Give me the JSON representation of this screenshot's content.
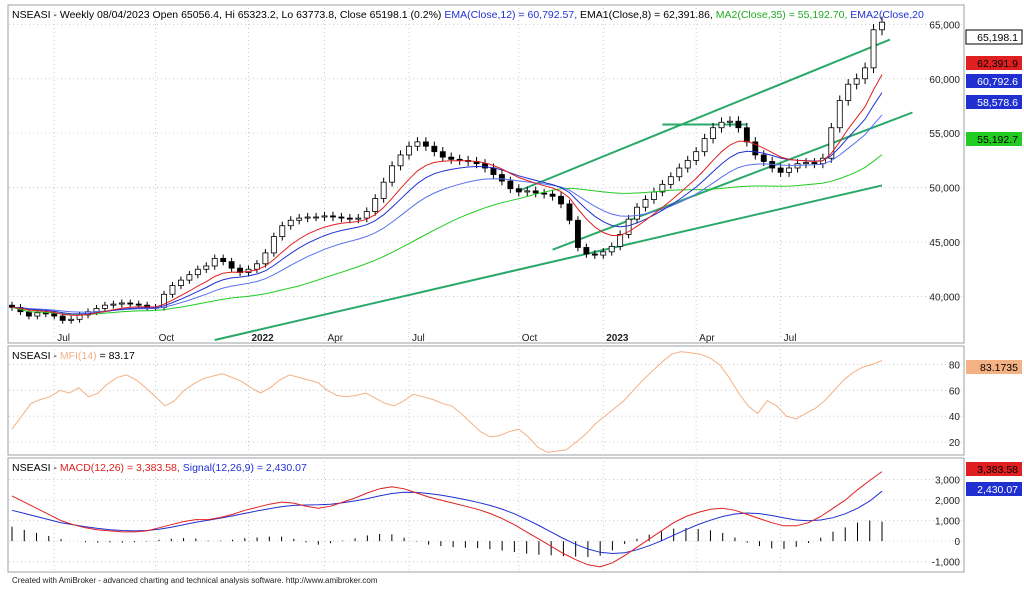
{
  "footer": "Created with AmiBroker - advanced charting and technical analysis software. http://www.amibroker.com",
  "chart_data": [
    {
      "type": "candlestick",
      "header": {
        "symbol": "NSEASI",
        "info": " - Weekly 08/04/2023 Open 65056.4, Hi 65323.2, Lo 63773.8, Close 65198.1 (0.2%) ",
        "ema12": "EMA(Close,12) = 60,792.57,",
        "ema8": " EMA1(Close,8) = 62,391.86,",
        "ma35": " MA2(Close,35) = 55,192.70,",
        "ema20": " EMA2(Close,20"
      },
      "y_ticks": [
        "40,000",
        "45,000",
        "50,000",
        "55,000",
        "60,000",
        "65,000"
      ],
      "ylim": [
        36000,
        66500
      ],
      "x_ticks": [
        "Jul",
        "Oct",
        "2022",
        "Apr",
        "Jul",
        "Oct",
        "2023",
        "Apr",
        "Jul"
      ],
      "value_tags": {
        "close": "65,198.1",
        "ema8": "62,391.9",
        "ema12": "60,792.6",
        "ema20": "58,578.6",
        "ma35": "55,192.7"
      },
      "colors": {
        "ema8": "#e02020",
        "ema12": "#2030d0",
        "ema20": "#5a6ff0",
        "ma35": "#22cc22",
        "trend": "#2aa86a",
        "candle_up": "#ffffff",
        "candle_down": "#000000"
      },
      "closes": [
        39000,
        38600,
        38200,
        38500,
        38400,
        38200,
        37800,
        37900,
        38300,
        38600,
        38900,
        39200,
        39300,
        39400,
        39300,
        39200,
        39000,
        39000,
        40200,
        41000,
        41500,
        42000,
        42500,
        42800,
        43500,
        43200,
        42600,
        42200,
        42500,
        43000,
        44000,
        45500,
        46500,
        47000,
        47200,
        47300,
        47300,
        47400,
        47300,
        47200,
        47100,
        47200,
        47800,
        49000,
        50500,
        52000,
        53000,
        53800,
        54200,
        53800,
        53300,
        52800,
        52600,
        52500,
        52400,
        52200,
        51800,
        51200,
        50600,
        49900,
        49600,
        49700,
        49500,
        49400,
        49200,
        48500,
        47000,
        44500,
        43900,
        43800,
        44100,
        44600,
        45700,
        47100,
        48200,
        48900,
        49600,
        50300,
        51000,
        51800,
        52500,
        53300,
        54500,
        55500,
        56000,
        56100,
        55500,
        54200,
        53000,
        52400,
        51800,
        51400,
        51800,
        52200,
        52300,
        52200,
        52700,
        55500,
        58000,
        59500,
        60000,
        61000,
        64500,
        65198
      ],
      "ema8_end": 62391.86,
      "ema12_end": 60792.57,
      "ema20_end": 58578.6,
      "ma35_end": 55192.7
    },
    {
      "type": "line",
      "header": {
        "symbol": "NSEASI",
        "sep": " - ",
        "indicator": "MFI(14)",
        "value": " = 83.17"
      },
      "y_ticks": [
        "20",
        "40",
        "60",
        "80"
      ],
      "ylim": [
        10,
        92
      ],
      "value_tag": "83.1735",
      "colors": {
        "mfi": "#f4b183"
      },
      "mfi": [
        30,
        40,
        50,
        53,
        55,
        60,
        58,
        62,
        55,
        58,
        65,
        70,
        72,
        68,
        62,
        55,
        48,
        52,
        60,
        65,
        69,
        71,
        73,
        70,
        67,
        62,
        58,
        62,
        68,
        72,
        70,
        68,
        66,
        60,
        56,
        55,
        56,
        58,
        54,
        50,
        48,
        52,
        57,
        55,
        53,
        50,
        48,
        42,
        35,
        28,
        24,
        25,
        28,
        30,
        24,
        16,
        12,
        13,
        14,
        20,
        26,
        34,
        40,
        46,
        52,
        60,
        68,
        75,
        82,
        88,
        90,
        89,
        88,
        85,
        80,
        70,
        58,
        48,
        42,
        52,
        48,
        40,
        38,
        42,
        46,
        52,
        60,
        68,
        74,
        78,
        80,
        83
      ]
    },
    {
      "type": "line",
      "header": {
        "symbol": "NSEASI",
        "sep": " - ",
        "macd": "MACD(12,26) = 3,383.58,",
        "signal": " Signal(12,26,9) = 2,430.07"
      },
      "y_ticks": [
        "-1,000",
        "0",
        "1,000",
        "2,000",
        "3,000"
      ],
      "ylim": [
        -1500,
        3900
      ],
      "value_tags": {
        "macd": "3,383.58",
        "signal": "2,430.07"
      },
      "colors": {
        "macd": "#e02020",
        "signal": "#2030d0",
        "hist": "#000000"
      },
      "macd": [
        2200,
        1900,
        1600,
        1300,
        1000,
        800,
        650,
        550,
        500,
        450,
        450,
        500,
        650,
        800,
        950,
        1050,
        1050,
        1150,
        1300,
        1500,
        1650,
        1800,
        1900,
        1850,
        1700,
        1600,
        1700,
        1900,
        2100,
        2350,
        2550,
        2650,
        2550,
        2350,
        2150,
        2000,
        1850,
        1700,
        1550,
        1350,
        1100,
        800,
        450,
        100,
        -250,
        -600,
        -900,
        -1150,
        -1250,
        -1050,
        -700,
        -300,
        100,
        500,
        900,
        1200,
        1400,
        1550,
        1600,
        1500,
        1300,
        1100,
        900,
        750,
        750,
        900,
        1200,
        1600,
        2000,
        2500,
        2950,
        3383.58
      ],
      "signal": [
        1500,
        1350,
        1200,
        1050,
        900,
        800,
        700,
        620,
        560,
        520,
        500,
        520,
        580,
        680,
        800,
        920,
        1020,
        1120,
        1230,
        1350,
        1470,
        1580,
        1680,
        1740,
        1760,
        1770,
        1800,
        1870,
        1960,
        2070,
        2200,
        2320,
        2380,
        2370,
        2320,
        2240,
        2140,
        2020,
        1890,
        1740,
        1560,
        1330,
        1060,
        760,
        440,
        130,
        -150,
        -380,
        -540,
        -600,
        -560,
        -420,
        -220,
        20,
        290,
        560,
        810,
        1020,
        1200,
        1320,
        1370,
        1340,
        1250,
        1130,
        1030,
        990,
        1030,
        1140,
        1330,
        1600,
        1950,
        2430.07
      ]
    }
  ]
}
